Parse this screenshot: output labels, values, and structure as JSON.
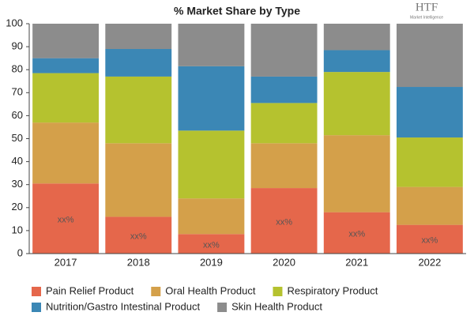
{
  "chart_data": {
    "type": "stacked_bar",
    "title": "% Market Share by Type",
    "logo": {
      "name": "HTF",
      "tagline": "Market Intelligence"
    },
    "categories": [
      "2017",
      "2018",
      "2019",
      "2020",
      "2021",
      "2022"
    ],
    "series": [
      {
        "name": "Pain Relief Product",
        "color": "#e5674b",
        "values": [
          30.5,
          16,
          8.5,
          28.5,
          18,
          12.5
        ],
        "value_labels": [
          "xx%",
          "xx%",
          "xx%",
          "xx%",
          "xx%",
          "xx%"
        ]
      },
      {
        "name": "Oral Health Product",
        "color": "#d4a04a",
        "values": [
          26.5,
          32,
          15.5,
          19.5,
          33.5,
          16.5
        ]
      },
      {
        "name": "Respiratory Product",
        "color": "#b5c22f",
        "values": [
          21.5,
          29,
          29.5,
          17.5,
          27.5,
          21.5
        ]
      },
      {
        "name": "Nutrition/Gastro Intestinal Product",
        "color": "#3b87b5",
        "values": [
          6.5,
          12,
          28,
          11.5,
          9.5,
          22
        ]
      },
      {
        "name": "Skin Health Product",
        "color": "#8c8c8c",
        "values": [
          15,
          11,
          18.5,
          23,
          11.5,
          27.5
        ]
      }
    ],
    "ylim": [
      0,
      100
    ],
    "yticks": [
      0,
      10,
      20,
      30,
      40,
      50,
      60,
      70,
      80,
      90,
      100
    ],
    "grid": false
  }
}
